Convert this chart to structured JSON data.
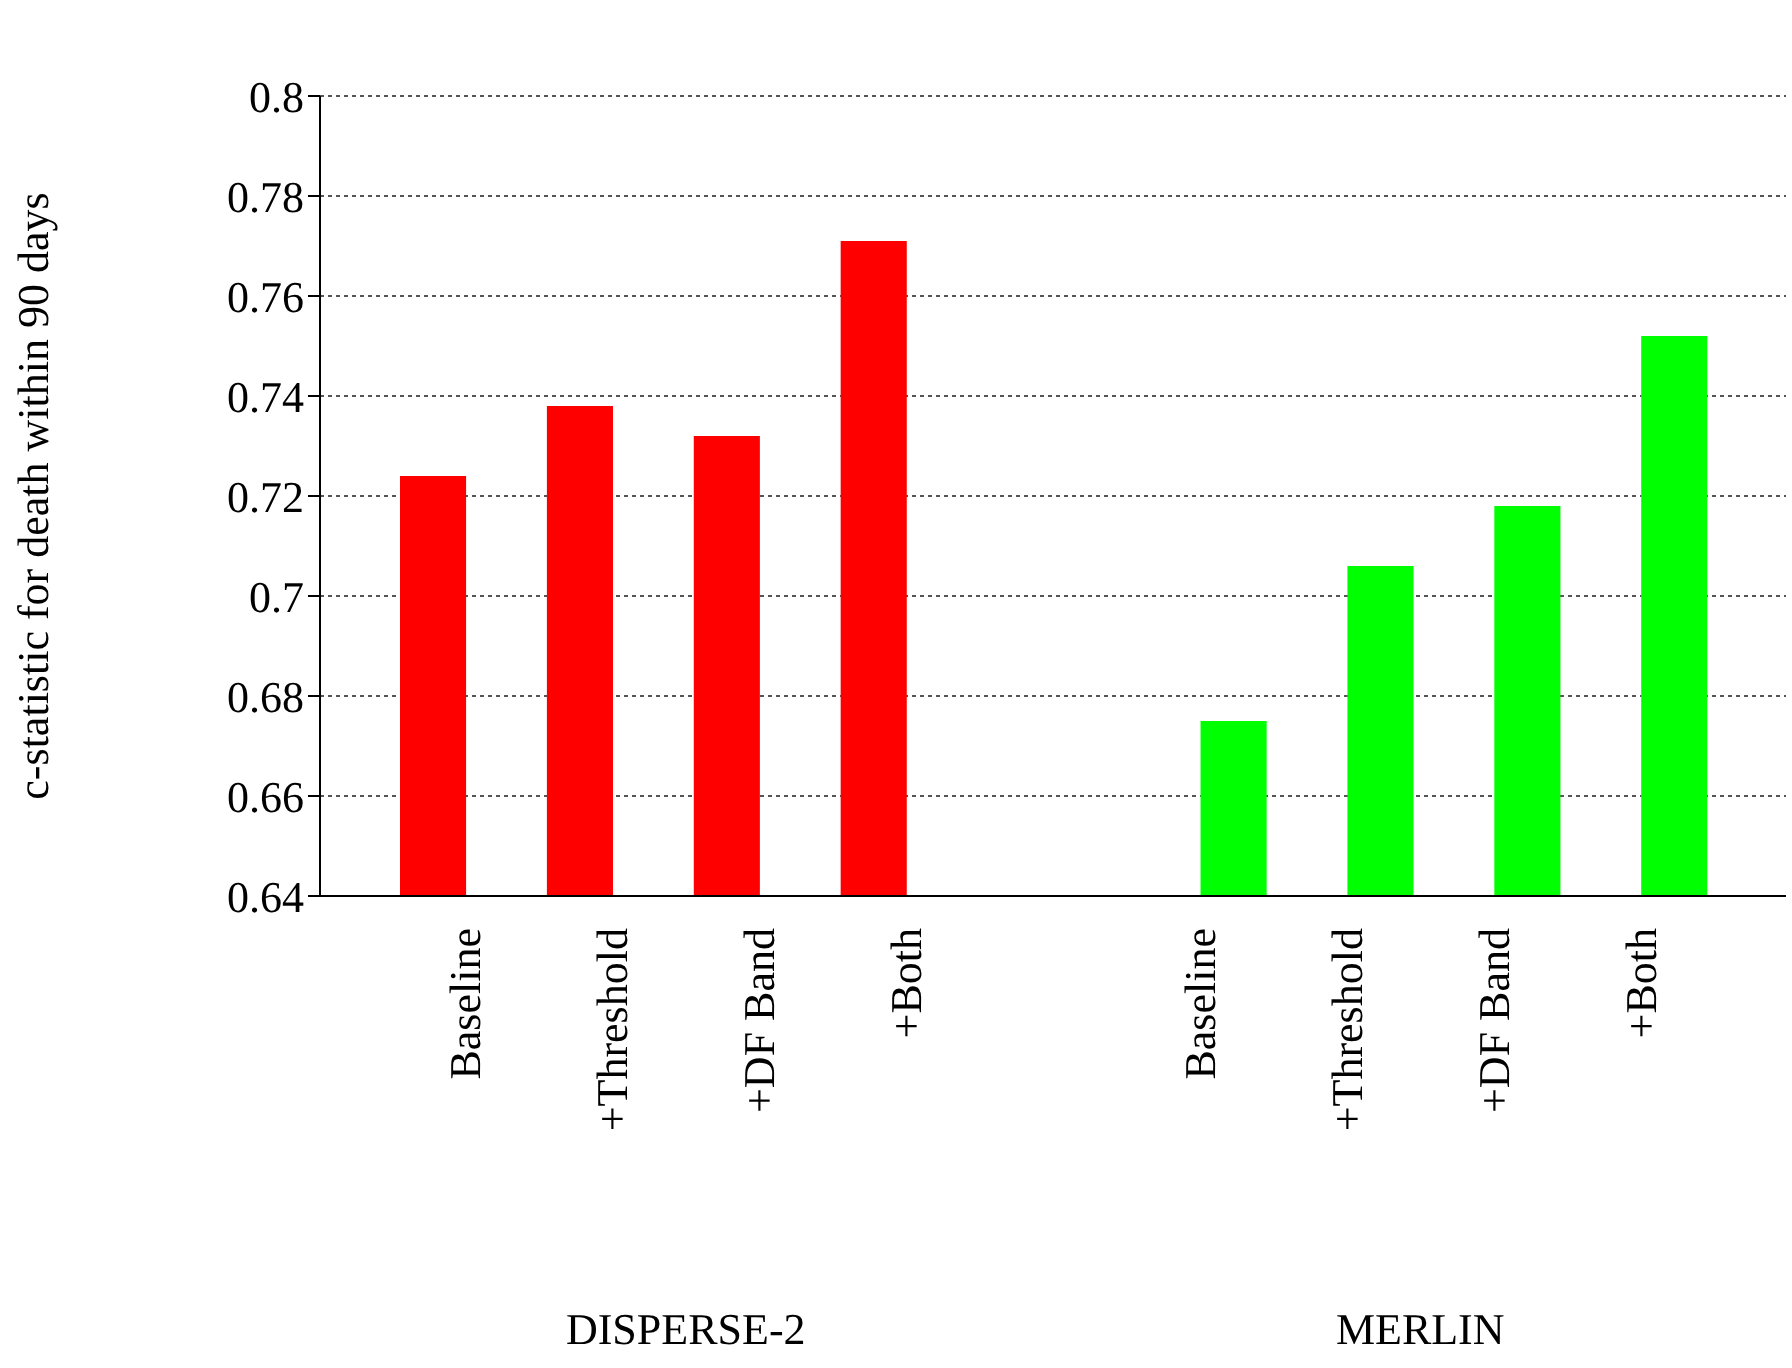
{
  "chart_data": {
    "type": "bar",
    "ylabel": "c-statistic for death within 90 days",
    "categories": [
      "Baseline",
      "+Threshold",
      "+DF Band",
      "+Both",
      null,
      "Baseline",
      "+Threshold",
      "+DF Band",
      "+Both"
    ],
    "series": [
      {
        "color": "#ff0000",
        "values": [
          0.724,
          0.738,
          0.732,
          0.771,
          null,
          null,
          null,
          null,
          null
        ]
      },
      {
        "color": "#00ff00",
        "values": [
          null,
          null,
          null,
          null,
          null,
          0.675,
          0.706,
          0.718,
          0.752
        ]
      }
    ],
    "ylim": [
      0.64,
      0.8
    ],
    "yticks": [
      0.64,
      0.66,
      0.68,
      0.7,
      0.72,
      0.74,
      0.76,
      0.78,
      0.8
    ],
    "grid": "y",
    "legend": false,
    "annotations": [
      "DISPERSE-2",
      "MERLIN"
    ]
  }
}
